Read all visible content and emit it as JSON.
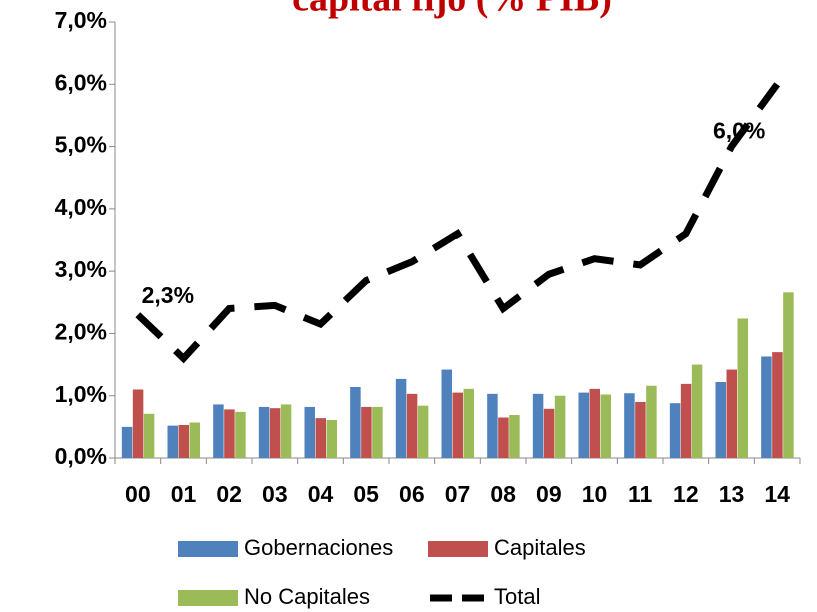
{
  "chart_data": {
    "type": "bar",
    "title": "capital fijo (% PIB)",
    "categories": [
      "00",
      "01",
      "02",
      "03",
      "04",
      "05",
      "06",
      "07",
      "08",
      "09",
      "10",
      "11",
      "12",
      "13",
      "14"
    ],
    "series": [
      {
        "name": "Gobernaciones",
        "color": "#4f81bd",
        "values": [
          0.5,
          0.52,
          0.86,
          0.82,
          0.82,
          1.14,
          1.27,
          1.42,
          1.03,
          1.03,
          1.05,
          1.04,
          0.88,
          1.22,
          1.63
        ]
      },
      {
        "name": "Capitales",
        "color": "#c0504d",
        "values": [
          1.1,
          0.53,
          0.78,
          0.8,
          0.64,
          0.82,
          1.03,
          1.05,
          0.65,
          0.79,
          1.11,
          0.9,
          1.19,
          1.42,
          1.7
        ]
      },
      {
        "name": "No Capitales",
        "color": "#9bbb59",
        "values": [
          0.71,
          0.57,
          0.74,
          0.86,
          0.61,
          0.82,
          0.84,
          1.11,
          0.69,
          1.0,
          1.02,
          1.16,
          1.5,
          2.24,
          2.66
        ]
      },
      {
        "name": "Total",
        "type": "line",
        "color": "#000000",
        "values": [
          2.3,
          1.6,
          2.4,
          2.45,
          2.15,
          2.85,
          3.15,
          3.6,
          2.4,
          2.95,
          3.2,
          3.1,
          3.6,
          5.0,
          6.0
        ],
        "value_labels": [
          "2,3%",
          null,
          null,
          null,
          null,
          null,
          null,
          null,
          null,
          null,
          null,
          null,
          null,
          null,
          "6,0%"
        ]
      }
    ],
    "ylim": [
      0,
      7
    ],
    "yticks": [
      {
        "value": 0,
        "label": "0,0%"
      },
      {
        "value": 1,
        "label": "1,0%"
      },
      {
        "value": 2,
        "label": "2,0%"
      },
      {
        "value": 3,
        "label": "3,0%"
      },
      {
        "value": 4,
        "label": "4,0%"
      },
      {
        "value": 5,
        "label": "5,0%"
      },
      {
        "value": 6,
        "label": "6,0%"
      },
      {
        "value": 7,
        "label": "7,0%"
      }
    ],
    "grid": false
  }
}
